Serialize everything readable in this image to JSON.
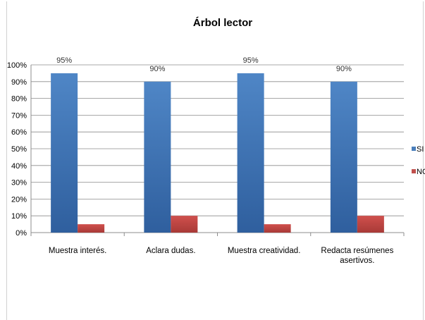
{
  "chart_data": {
    "type": "bar",
    "title": "Árbol lector",
    "categories": [
      [
        "Muestra interés."
      ],
      [
        "Aclara dudas."
      ],
      [
        "Muestra creatividad."
      ],
      [
        "Redacta resúmenes",
        "asertivos."
      ]
    ],
    "series": [
      {
        "name": "SI",
        "values": [
          95,
          90,
          95,
          90
        ],
        "color": "#4a7ebb",
        "data_labels": [
          "95%",
          "90%",
          "95%",
          "90%"
        ]
      },
      {
        "name": "NO",
        "values": [
          5,
          10,
          5,
          10
        ],
        "color": "#c0504d"
      }
    ],
    "y_ticks": [
      "0%",
      "10%",
      "20%",
      "30%",
      "40%",
      "50%",
      "60%",
      "70%",
      "80%",
      "90%",
      "100%"
    ],
    "ylim": [
      0,
      100
    ],
    "grid": true,
    "legend_position": "right"
  }
}
